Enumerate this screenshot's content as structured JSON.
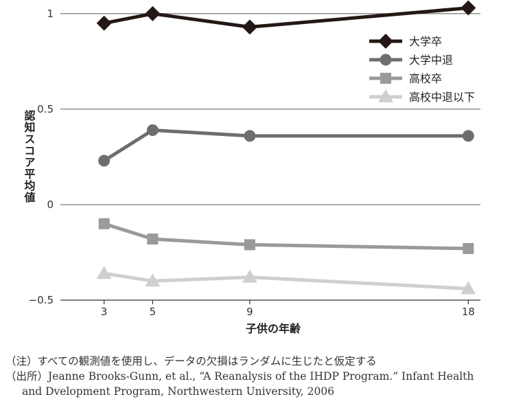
{
  "chart_data": {
    "type": "line",
    "title": "",
    "xlabel": "子供の年齢",
    "ylabel": "認知スコア平均値",
    "x": [
      3,
      5,
      9,
      18
    ],
    "xticks": [
      3,
      5,
      9,
      18
    ],
    "xlim": [
      1.2,
      18.5
    ],
    "ylim": [
      -0.5,
      1.05
    ],
    "yticks": [
      {
        "value": -0.5,
        "label": "−0.5"
      },
      {
        "value": 0,
        "label": "0"
      },
      {
        "value": 0.5,
        "label": "0.5"
      },
      {
        "value": 1,
        "label": "1"
      }
    ],
    "grid": "horizontal",
    "legend": "top-right",
    "series": [
      {
        "name": "大学卒",
        "values": [
          0.95,
          1.0,
          0.93,
          1.03
        ],
        "color": "#231815",
        "marker": "diamond"
      },
      {
        "name": "大学中退",
        "values": [
          0.23,
          0.39,
          0.36,
          0.36
        ],
        "color": "#6e6e6e",
        "marker": "circle"
      },
      {
        "name": "高校卒",
        "values": [
          -0.1,
          -0.18,
          -0.21,
          -0.23
        ],
        "color": "#9a9a9a",
        "marker": "square"
      },
      {
        "name": "高校中退以下",
        "values": [
          -0.36,
          -0.4,
          -0.38,
          -0.44
        ],
        "color": "#cfcfcf",
        "marker": "triangle"
      }
    ]
  },
  "notes": {
    "note1": "（注）すべての観測値を使用し、データの欠損はランダムに生じたと仮定する",
    "source_line1": "（出所）Jeanne Brooks-Gunn, et al., “A Reanalysis of the IHDP Program.” Infant Health",
    "source_line2": "and Dvelopment Program, Northwestern University, 2006"
  }
}
